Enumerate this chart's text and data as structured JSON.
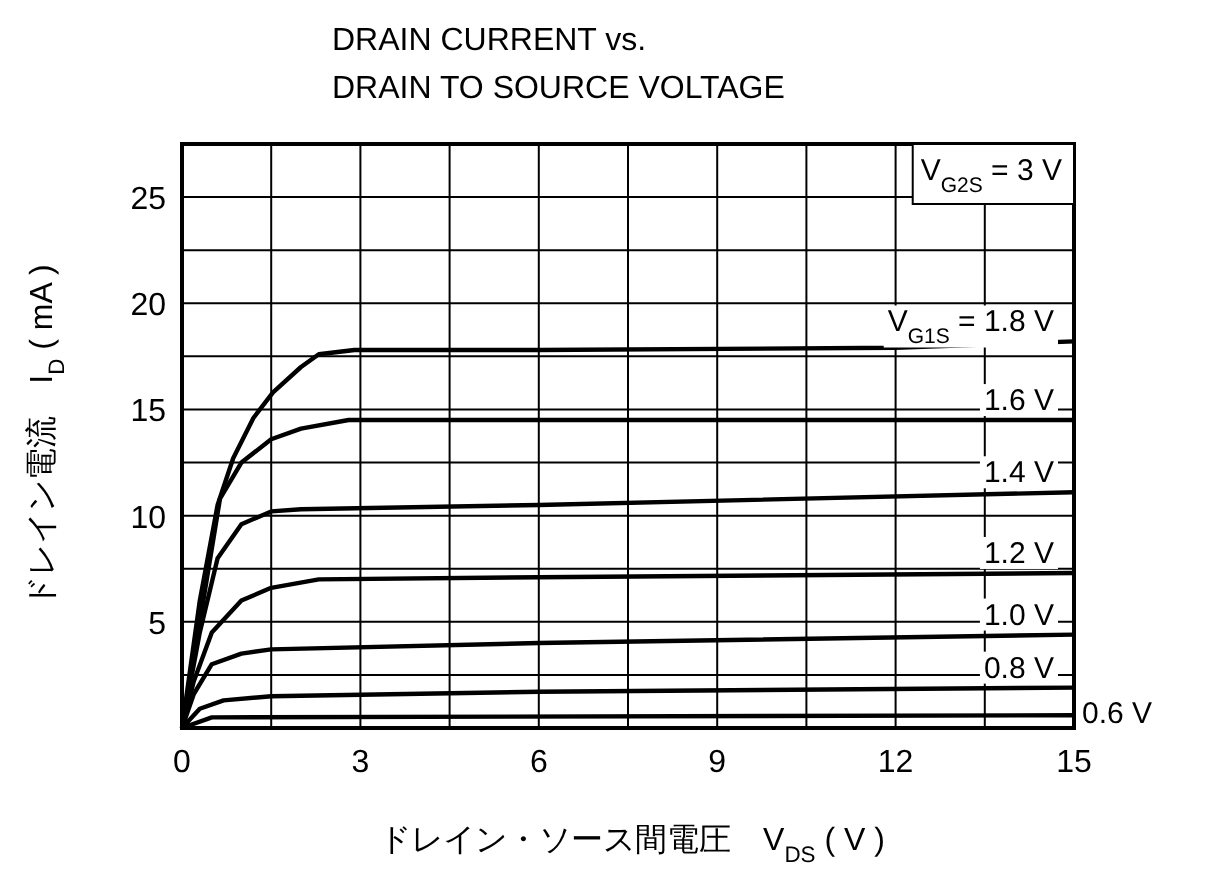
{
  "chart_data": {
    "type": "line",
    "title": "DRAIN CURRENT vs.\nDRAIN TO SOURCE VOLTAGE",
    "xlabel": "ドレイン・ソース間電圧　V$_{DS}$ ( V )",
    "ylabel": "ドレイン電流　I$_{D}$ ( mA )",
    "annotations": [
      "V$_{G2S}$ = 3 V"
    ],
    "xlim": [
      0,
      15
    ],
    "ylim": [
      0,
      27.5
    ],
    "xticks": [
      0,
      {
        "value": 1.5,
        "label": null
      },
      3,
      {
        "value": 4.5,
        "label": null
      },
      6,
      {
        "value": 7.5,
        "label": null
      },
      9,
      {
        "value": 10.5,
        "label": null
      },
      12,
      {
        "value": 13.5,
        "label": null
      },
      15
    ],
    "yticks": [
      {
        "value": 2.5,
        "label": null
      },
      5,
      {
        "value": 7.5,
        "label": null
      },
      10,
      {
        "value": 12.5,
        "label": null
      },
      15,
      {
        "value": 17.5,
        "label": null
      },
      20,
      {
        "value": 22.5,
        "label": null
      },
      25
    ],
    "grid": true,
    "line_style": "solid",
    "series": [
      {
        "name": "V$_{G1S}$ = 1.8 V",
        "color": "#000000",
        "x": [
          0,
          0.3,
          0.6,
          0.86,
          1.2,
          1.53,
          2,
          2.3,
          2.9,
          6,
          12,
          15
        ],
        "values": [
          0,
          6,
          10.5,
          12.7,
          14.6,
          15.8,
          17,
          17.6,
          17.8,
          17.8,
          17.9,
          18.2
        ]
      },
      {
        "name": "1.6 V",
        "color": "#000000",
        "x": [
          0,
          0.3,
          0.64,
          1,
          1.5,
          2,
          2.8,
          15
        ],
        "values": [
          0,
          5,
          10.8,
          12.5,
          13.6,
          14.1,
          14.5,
          14.5
        ]
      },
      {
        "name": "1.4 V",
        "color": "#000000",
        "x": [
          0,
          0.3,
          0.6,
          1,
          1.5,
          2,
          6,
          15
        ],
        "values": [
          0,
          4.5,
          8,
          9.6,
          10.2,
          10.3,
          10.5,
          11.1
        ]
      },
      {
        "name": "1.2 V",
        "color": "#000000",
        "x": [
          0,
          0.2,
          0.5,
          1,
          1.5,
          2.3,
          6,
          15
        ],
        "values": [
          0,
          2.2,
          4.5,
          6,
          6.6,
          7,
          7.1,
          7.3
        ]
      },
      {
        "name": "1.0 V",
        "color": "#000000",
        "x": [
          0,
          0.2,
          0.5,
          1,
          1.5,
          6,
          15
        ],
        "values": [
          0,
          1.6,
          3,
          3.5,
          3.7,
          4,
          4.4
        ]
      },
      {
        "name": "0.8 V",
        "color": "#000000",
        "x": [
          0,
          0.3,
          0.7,
          1.5,
          6,
          15
        ],
        "values": [
          0,
          0.9,
          1.3,
          1.5,
          1.7,
          1.9
        ]
      },
      {
        "name": "0.6 V",
        "color": "#000000",
        "x": [
          0,
          0.5,
          15
        ],
        "values": [
          0,
          0.5,
          0.6
        ]
      }
    ]
  }
}
